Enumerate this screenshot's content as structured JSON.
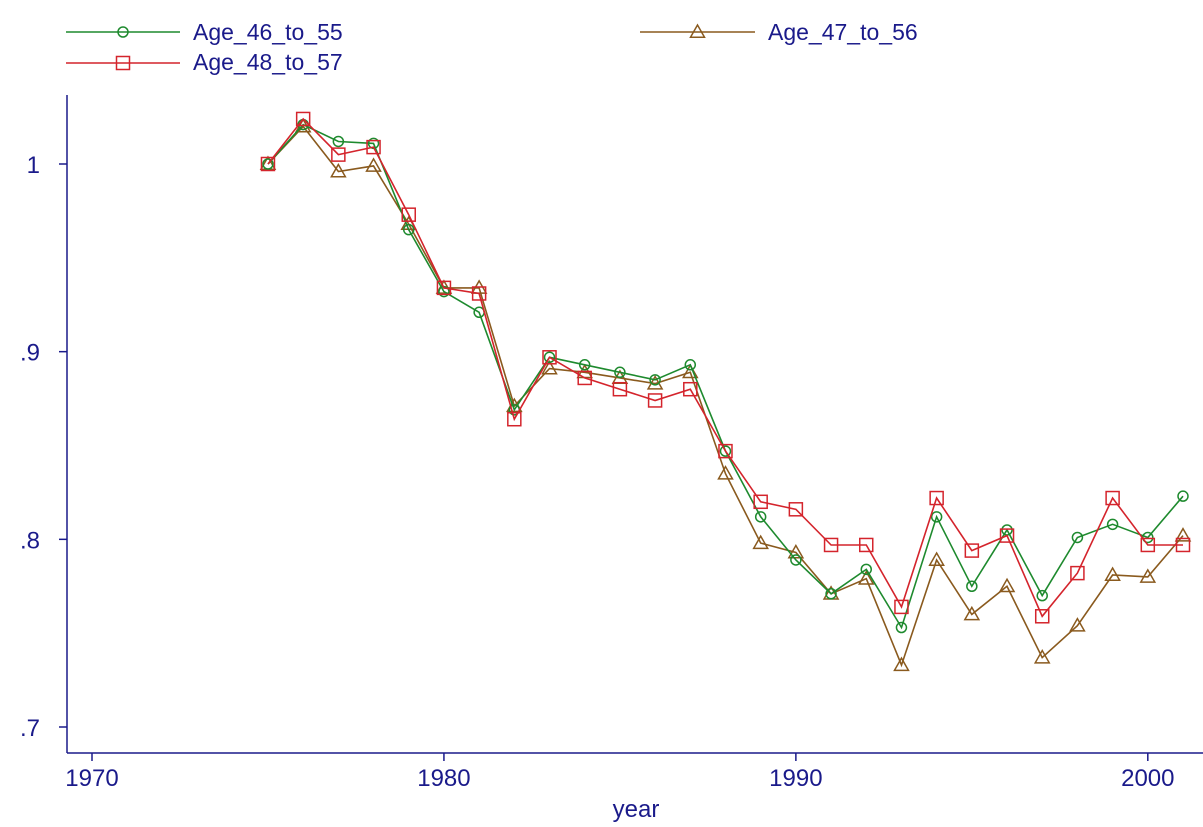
{
  "chart_data": {
    "type": "line",
    "xlabel": "year",
    "ylabel": "",
    "xlim": [
      1968,
      2001
    ],
    "ylim": [
      0.7,
      1.04
    ],
    "xticks": [
      1970,
      1980,
      1990,
      2000
    ],
    "xtick_labels": [
      "1970",
      "1980",
      "1990",
      "2000"
    ],
    "yticks": [
      0.7,
      0.8,
      0.9,
      1.0
    ],
    "ytick_labels": [
      ".7",
      ".8",
      ".9",
      "1"
    ],
    "grid": false,
    "legend_position": "top",
    "x": [
      1975,
      1976,
      1977,
      1978,
      1979,
      1980,
      1981,
      1982,
      1983,
      1984,
      1985,
      1986,
      1987,
      1988,
      1989,
      1990,
      1991,
      1992,
      1993,
      1994,
      1995,
      1996,
      1997,
      1998,
      1999,
      2000,
      2001
    ],
    "series": [
      {
        "name": "Age_46_to_55",
        "color": "#1e8a2e",
        "marker": "circle",
        "values": [
          1.0,
          1.021,
          1.012,
          1.011,
          0.965,
          0.932,
          0.921,
          0.869,
          0.897,
          0.893,
          0.889,
          0.885,
          0.893,
          0.847,
          0.812,
          0.789,
          0.771,
          0.784,
          0.753,
          0.812,
          0.775,
          0.805,
          0.77,
          0.801,
          0.808,
          0.801,
          0.823
        ]
      },
      {
        "name": "Age_47_to_56",
        "color": "#8a5a1e",
        "marker": "triangle",
        "values": [
          1.0,
          1.02,
          0.996,
          0.999,
          0.968,
          0.934,
          0.934,
          0.871,
          0.891,
          0.889,
          0.886,
          0.883,
          0.889,
          0.835,
          0.798,
          0.793,
          0.771,
          0.779,
          0.733,
          0.789,
          0.76,
          0.775,
          0.737,
          0.754,
          0.781,
          0.78,
          0.802
        ]
      },
      {
        "name": "Age_48_to_57",
        "color": "#d4242c",
        "marker": "square",
        "values": [
          1.0,
          1.024,
          1.005,
          1.009,
          0.973,
          0.934,
          0.931,
          0.864,
          0.897,
          0.886,
          0.88,
          0.874,
          0.88,
          0.847,
          0.82,
          0.816,
          0.797,
          0.797,
          0.764,
          0.822,
          0.794,
          0.802,
          0.759,
          0.782,
          0.822,
          0.797,
          0.797
        ]
      }
    ]
  }
}
